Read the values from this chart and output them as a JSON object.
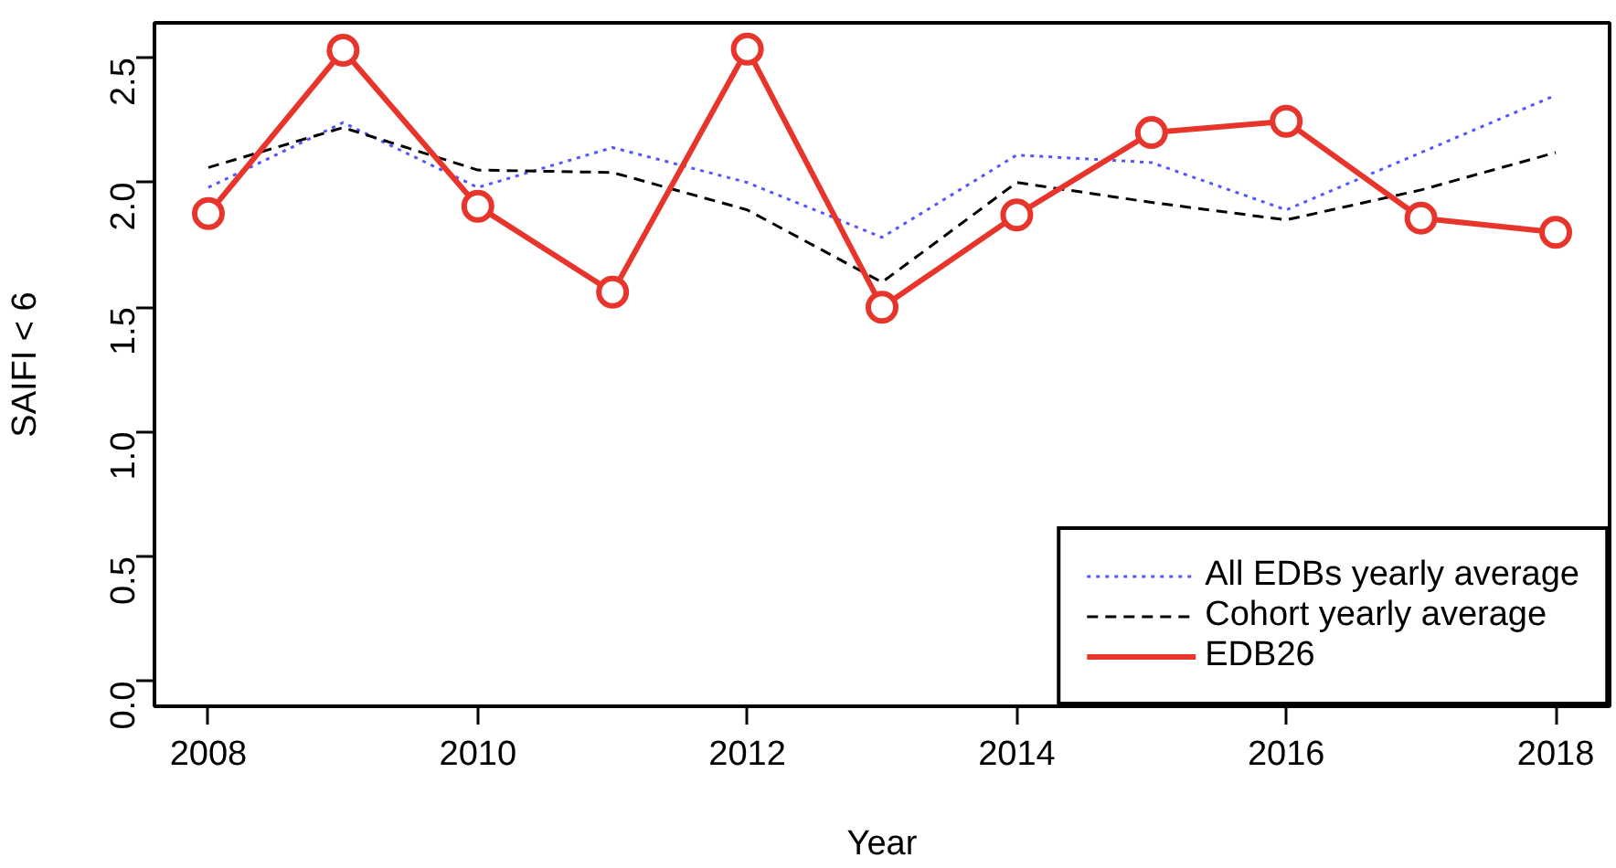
{
  "chart_data": {
    "type": "line",
    "xlabel": "Year",
    "ylabel": "SAIFI < 6",
    "x": [
      2008,
      2009,
      2010,
      2011,
      2012,
      2013,
      2014,
      2015,
      2016,
      2017,
      2018
    ],
    "series": [
      {
        "name": "All EDBs yearly average",
        "color": "#5555ff",
        "line_style": "dotted",
        "marker": "none",
        "values": [
          1.98,
          2.24,
          1.98,
          2.14,
          2.0,
          1.78,
          2.11,
          2.08,
          1.89,
          2.12,
          2.35
        ]
      },
      {
        "name": "Cohort yearly average",
        "color": "#000000",
        "line_style": "dashed",
        "marker": "none",
        "values": [
          2.06,
          2.22,
          2.05,
          2.04,
          1.89,
          1.6,
          2.0,
          1.92,
          1.85,
          1.97,
          2.12
        ]
      },
      {
        "name": "EDB26",
        "color": "#e8352b",
        "line_style": "solid",
        "marker": "circle",
        "values": [
          1.875,
          2.53,
          1.905,
          1.56,
          2.535,
          1.5,
          1.87,
          2.2,
          2.245,
          1.857,
          1.8
        ]
      }
    ],
    "xlim": [
      2007.6,
      2018.4
    ],
    "ylim": [
      -0.1,
      2.64
    ],
    "xticks": [
      2008,
      2010,
      2012,
      2014,
      2016,
      2018
    ],
    "yticks": [
      {
        "value": 0,
        "label": "0.0"
      },
      0.5,
      {
        "value": 1,
        "label": "1.0"
      },
      1.5,
      {
        "value": 2,
        "label": "2.0"
      },
      2.5
    ],
    "grid": false,
    "legend": "bottom right"
  }
}
